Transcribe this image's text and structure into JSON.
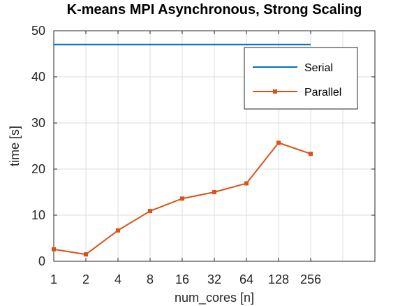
{
  "chart_data": {
    "type": "line",
    "title": "K-means MPI Asynchronous, Strong Scaling",
    "xlabel": "num_cores [n]",
    "ylabel": "time [s]",
    "x_ticks": [
      "1",
      "2",
      "4",
      "8",
      "16",
      "32",
      "64",
      "128",
      "256"
    ],
    "x_scale": "log2",
    "xlim": [
      1,
      1024
    ],
    "ylim": [
      0,
      50
    ],
    "y_ticks": [
      "0",
      "10",
      "20",
      "30",
      "40",
      "50"
    ],
    "grid": true,
    "legend_position": "top-right",
    "series": [
      {
        "name": "Serial",
        "color": "#0072BD",
        "marker": "none",
        "x": [
          1,
          256
        ],
        "y": [
          47,
          47
        ]
      },
      {
        "name": "Parallel",
        "color": "#D95319",
        "marker": "square",
        "x": [
          1,
          2,
          4,
          8,
          16,
          32,
          64,
          128,
          256
        ],
        "y": [
          2.6,
          1.5,
          6.7,
          10.9,
          13.6,
          15.0,
          16.9,
          25.7,
          23.3
        ]
      }
    ]
  }
}
